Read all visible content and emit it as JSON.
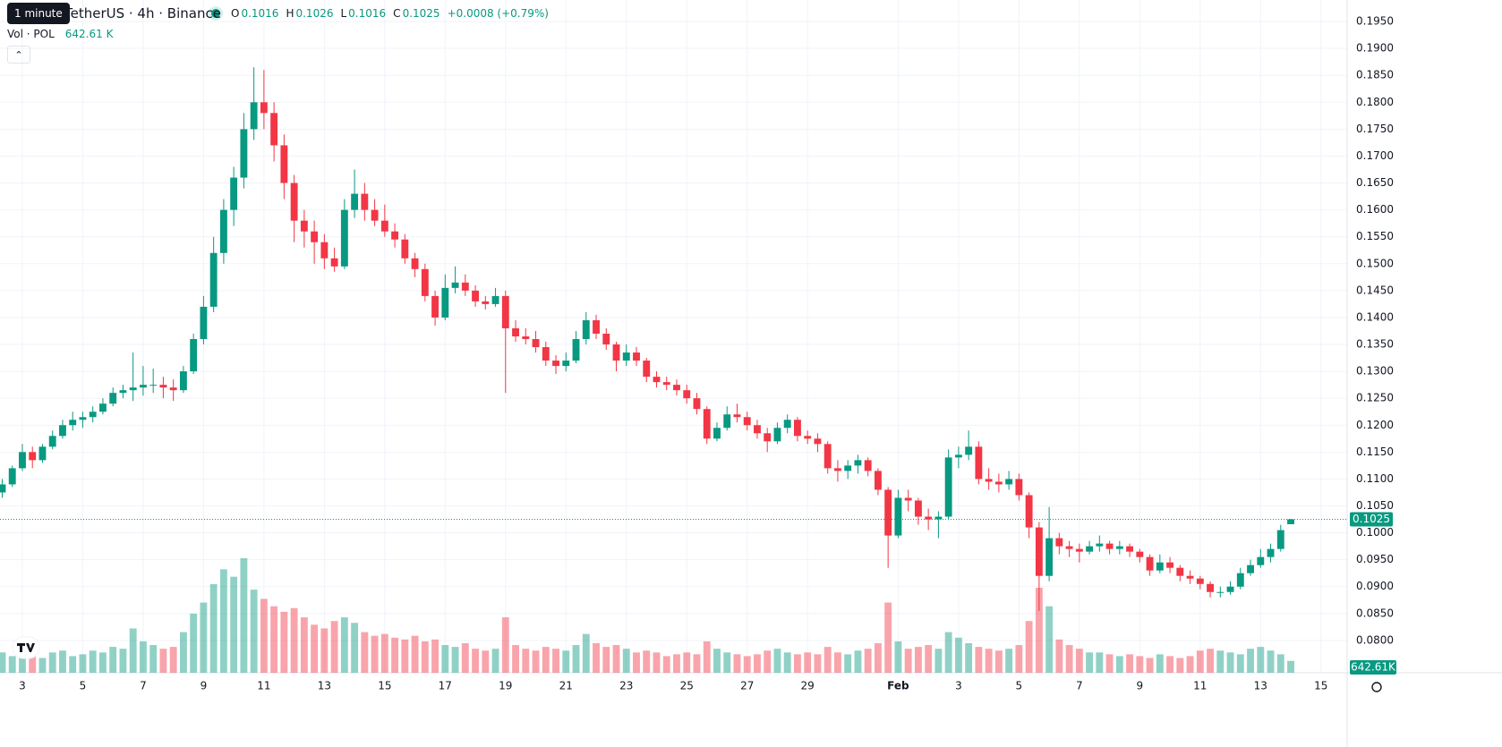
{
  "header": {
    "tooltip": "1 minute",
    "title": "TetherUS · 4h · Binance",
    "legend": {
      "open_label": "O",
      "high_label": "H",
      "low_label": "L",
      "close_label": "C",
      "change": "+0.0008 (+0.79%)"
    },
    "volume_title": "Vol · POL"
  },
  "chart_data": {
    "type": "candlestick",
    "up_color": "#089981",
    "down_color": "#f23645",
    "grid": true,
    "xlim": [
      -0.22,
      133.6
    ],
    "xticks": [
      {
        "value": 2,
        "label": "3"
      },
      {
        "value": 8,
        "label": "5"
      },
      {
        "value": 14,
        "label": "7"
      },
      {
        "value": 20,
        "label": "9"
      },
      {
        "value": 26,
        "label": "11"
      },
      {
        "value": 32,
        "label": "13"
      },
      {
        "value": 38,
        "label": "15"
      },
      {
        "value": 44,
        "label": "17"
      },
      {
        "value": 50,
        "label": "19"
      },
      {
        "value": 56,
        "label": "21"
      },
      {
        "value": 62,
        "label": "23"
      },
      {
        "value": 68,
        "label": "25"
      },
      {
        "value": 74,
        "label": "27"
      },
      {
        "value": 80,
        "label": "29"
      },
      {
        "value": 89,
        "label": "Feb"
      },
      {
        "value": 95,
        "label": "3"
      },
      {
        "value": 101,
        "label": "5"
      },
      {
        "value": 107,
        "label": "7"
      },
      {
        "value": 113,
        "label": "9"
      },
      {
        "value": 119,
        "label": "11"
      },
      {
        "value": 125,
        "label": "13"
      },
      {
        "value": 131,
        "label": "15"
      }
    ],
    "ylim": [
      0.074,
      0.199
    ],
    "yticks": [
      {
        "value": 0.08,
        "label": "0.0800"
      },
      {
        "value": 0.085,
        "label": "0.0850"
      },
      {
        "value": 0.09,
        "label": "0.0900"
      },
      {
        "value": 0.095,
        "label": "0.0950"
      },
      {
        "value": 0.1,
        "label": "0.1000"
      },
      {
        "value": 0.105,
        "label": "0.1050"
      },
      {
        "value": 0.11,
        "label": "0.1100"
      },
      {
        "value": 0.115,
        "label": "0.1150"
      },
      {
        "value": 0.12,
        "label": "0.1200"
      },
      {
        "value": 0.125,
        "label": "0.1250"
      },
      {
        "value": 0.13,
        "label": "0.1300"
      },
      {
        "value": 0.135,
        "label": "0.1350"
      },
      {
        "value": 0.14,
        "label": "0.1400"
      },
      {
        "value": 0.145,
        "label": "0.1450"
      },
      {
        "value": 0.15,
        "label": "0.1500"
      },
      {
        "value": 0.155,
        "label": "0.1550"
      },
      {
        "value": 0.16,
        "label": "0.1600"
      },
      {
        "value": 0.165,
        "label": "0.1650"
      },
      {
        "value": 0.17,
        "label": "0.1700"
      },
      {
        "value": 0.175,
        "label": "0.1750"
      },
      {
        "value": 0.18,
        "label": "0.1800"
      },
      {
        "value": 0.185,
        "label": "0.1850"
      },
      {
        "value": 0.19,
        "label": "0.1900"
      },
      {
        "value": 0.195,
        "label": "0.1950"
      }
    ],
    "candles": [
      [
        0.1075,
        0.11,
        0.1065,
        0.109
      ],
      [
        0.109,
        0.1125,
        0.1085,
        0.112
      ],
      [
        0.112,
        0.1165,
        0.1115,
        0.115
      ],
      [
        0.115,
        0.116,
        0.112,
        0.1135
      ],
      [
        0.1135,
        0.1165,
        0.113,
        0.116
      ],
      [
        0.116,
        0.119,
        0.1155,
        0.118
      ],
      [
        0.118,
        0.121,
        0.1175,
        0.12
      ],
      [
        0.12,
        0.1225,
        0.119,
        0.121
      ],
      [
        0.121,
        0.1225,
        0.1195,
        0.1215
      ],
      [
        0.1215,
        0.1235,
        0.1205,
        0.1225
      ],
      [
        0.1225,
        0.125,
        0.122,
        0.124
      ],
      [
        0.124,
        0.127,
        0.1235,
        0.126
      ],
      [
        0.126,
        0.1275,
        0.125,
        0.1265
      ],
      [
        0.1265,
        0.1335,
        0.1245,
        0.127
      ],
      [
        0.127,
        0.131,
        0.1255,
        0.1275
      ],
      [
        0.1275,
        0.1305,
        0.126,
        0.1275
      ],
      [
        0.1275,
        0.129,
        0.125,
        0.127
      ],
      [
        0.127,
        0.1285,
        0.1245,
        0.1265
      ],
      [
        0.1265,
        0.131,
        0.126,
        0.13
      ],
      [
        0.13,
        0.137,
        0.1295,
        0.136
      ],
      [
        0.136,
        0.144,
        0.135,
        0.142
      ],
      [
        0.142,
        0.155,
        0.141,
        0.152
      ],
      [
        0.152,
        0.162,
        0.15,
        0.16
      ],
      [
        0.16,
        0.168,
        0.157,
        0.166
      ],
      [
        0.166,
        0.178,
        0.164,
        0.175
      ],
      [
        0.175,
        0.1865,
        0.173,
        0.18
      ],
      [
        0.18,
        0.186,
        0.175,
        0.178
      ],
      [
        0.178,
        0.18,
        0.169,
        0.172
      ],
      [
        0.172,
        0.174,
        0.162,
        0.165
      ],
      [
        0.165,
        0.1665,
        0.154,
        0.158
      ],
      [
        0.158,
        0.16,
        0.153,
        0.156
      ],
      [
        0.156,
        0.158,
        0.15,
        0.154
      ],
      [
        0.154,
        0.1555,
        0.149,
        0.151
      ],
      [
        0.151,
        0.153,
        0.1485,
        0.1495
      ],
      [
        0.1495,
        0.162,
        0.149,
        0.16
      ],
      [
        0.16,
        0.1675,
        0.1585,
        0.163
      ],
      [
        0.163,
        0.165,
        0.158,
        0.16
      ],
      [
        0.16,
        0.162,
        0.157,
        0.158
      ],
      [
        0.158,
        0.161,
        0.155,
        0.156
      ],
      [
        0.156,
        0.1575,
        0.153,
        0.1545
      ],
      [
        0.1545,
        0.1555,
        0.15,
        0.151
      ],
      [
        0.151,
        0.152,
        0.1475,
        0.149
      ],
      [
        0.149,
        0.15,
        0.143,
        0.144
      ],
      [
        0.144,
        0.145,
        0.1385,
        0.14
      ],
      [
        0.14,
        0.148,
        0.1395,
        0.1455
      ],
      [
        0.1455,
        0.1495,
        0.1445,
        0.1465
      ],
      [
        0.1465,
        0.148,
        0.144,
        0.145
      ],
      [
        0.145,
        0.146,
        0.142,
        0.143
      ],
      [
        0.143,
        0.144,
        0.1415,
        0.1425
      ],
      [
        0.1425,
        0.1455,
        0.142,
        0.144
      ],
      [
        0.144,
        0.145,
        0.126,
        0.138
      ],
      [
        0.138,
        0.1395,
        0.1355,
        0.1365
      ],
      [
        0.1365,
        0.138,
        0.135,
        0.136
      ],
      [
        0.136,
        0.1375,
        0.1335,
        0.1345
      ],
      [
        0.1345,
        0.1355,
        0.131,
        0.132
      ],
      [
        0.132,
        0.133,
        0.1295,
        0.131
      ],
      [
        0.131,
        0.1335,
        0.13,
        0.132
      ],
      [
        0.132,
        0.1375,
        0.1315,
        0.136
      ],
      [
        0.136,
        0.141,
        0.135,
        0.1395
      ],
      [
        0.1395,
        0.1405,
        0.136,
        0.137
      ],
      [
        0.137,
        0.138,
        0.134,
        0.135
      ],
      [
        0.135,
        0.1355,
        0.13,
        0.132
      ],
      [
        0.132,
        0.135,
        0.131,
        0.1335
      ],
      [
        0.1335,
        0.1345,
        0.131,
        0.132
      ],
      [
        0.132,
        0.1325,
        0.128,
        0.129
      ],
      [
        0.129,
        0.13,
        0.127,
        0.128
      ],
      [
        0.128,
        0.129,
        0.1265,
        0.1275
      ],
      [
        0.1275,
        0.1285,
        0.1255,
        0.1265
      ],
      [
        0.1265,
        0.1275,
        0.124,
        0.125
      ],
      [
        0.125,
        0.126,
        0.122,
        0.123
      ],
      [
        0.123,
        0.1235,
        0.1165,
        0.1175
      ],
      [
        0.1175,
        0.1205,
        0.117,
        0.1195
      ],
      [
        0.1195,
        0.1235,
        0.119,
        0.122
      ],
      [
        0.122,
        0.124,
        0.1205,
        0.1215
      ],
      [
        0.1215,
        0.1225,
        0.119,
        0.12
      ],
      [
        0.12,
        0.121,
        0.1175,
        0.1185
      ],
      [
        0.1185,
        0.1195,
        0.115,
        0.117
      ],
      [
        0.117,
        0.1205,
        0.1165,
        0.1195
      ],
      [
        0.1195,
        0.122,
        0.1185,
        0.121
      ],
      [
        0.121,
        0.1215,
        0.117,
        0.118
      ],
      [
        0.118,
        0.119,
        0.1165,
        0.1175
      ],
      [
        0.1175,
        0.1185,
        0.115,
        0.1165
      ],
      [
        0.1165,
        0.117,
        0.111,
        0.112
      ],
      [
        0.112,
        0.1135,
        0.1095,
        0.1115
      ],
      [
        0.1115,
        0.1135,
        0.11,
        0.1125
      ],
      [
        0.1125,
        0.1145,
        0.111,
        0.1135
      ],
      [
        0.1135,
        0.114,
        0.1105,
        0.1115
      ],
      [
        0.1115,
        0.112,
        0.107,
        0.108
      ],
      [
        0.108,
        0.1085,
        0.0935,
        0.0995
      ],
      [
        0.0995,
        0.108,
        0.099,
        0.1065
      ],
      [
        0.1065,
        0.108,
        0.104,
        0.106
      ],
      [
        0.106,
        0.1065,
        0.1015,
        0.103
      ],
      [
        0.103,
        0.1045,
        0.1005,
        0.1025
      ],
      [
        0.1025,
        0.104,
        0.099,
        0.103
      ],
      [
        0.103,
        0.1155,
        0.1025,
        0.114
      ],
      [
        0.114,
        0.116,
        0.112,
        0.1145
      ],
      [
        0.1145,
        0.119,
        0.1135,
        0.116
      ],
      [
        0.116,
        0.117,
        0.109,
        0.11
      ],
      [
        0.11,
        0.112,
        0.108,
        0.1095
      ],
      [
        0.1095,
        0.111,
        0.1075,
        0.109
      ],
      [
        0.109,
        0.1115,
        0.108,
        0.11
      ],
      [
        0.11,
        0.111,
        0.106,
        0.107
      ],
      [
        0.107,
        0.1075,
        0.099,
        0.101
      ],
      [
        0.101,
        0.102,
        0.0855,
        0.092
      ],
      [
        0.092,
        0.1048,
        0.091,
        0.099
      ],
      [
        0.099,
        0.1,
        0.096,
        0.0975
      ],
      [
        0.0975,
        0.0985,
        0.0955,
        0.097
      ],
      [
        0.097,
        0.098,
        0.0945,
        0.0965
      ],
      [
        0.0965,
        0.0985,
        0.096,
        0.0975
      ],
      [
        0.0975,
        0.0995,
        0.0965,
        0.098
      ],
      [
        0.098,
        0.0985,
        0.096,
        0.097
      ],
      [
        0.097,
        0.0985,
        0.096,
        0.0975
      ],
      [
        0.0975,
        0.098,
        0.0955,
        0.0965
      ],
      [
        0.0965,
        0.097,
        0.0945,
        0.0955
      ],
      [
        0.0955,
        0.096,
        0.092,
        0.093
      ],
      [
        0.093,
        0.096,
        0.0925,
        0.0945
      ],
      [
        0.0945,
        0.0955,
        0.0925,
        0.0935
      ],
      [
        0.0935,
        0.094,
        0.091,
        0.092
      ],
      [
        0.092,
        0.093,
        0.0905,
        0.0915
      ],
      [
        0.0915,
        0.092,
        0.0895,
        0.0905
      ],
      [
        0.0905,
        0.091,
        0.088,
        0.089
      ],
      [
        0.089,
        0.09,
        0.088,
        0.089
      ],
      [
        0.089,
        0.091,
        0.0885,
        0.09
      ],
      [
        0.09,
        0.0935,
        0.0895,
        0.0925
      ],
      [
        0.0925,
        0.095,
        0.092,
        0.094
      ],
      [
        0.094,
        0.097,
        0.0935,
        0.0955
      ],
      [
        0.0955,
        0.098,
        0.0945,
        0.097
      ],
      [
        0.097,
        0.1015,
        0.0965,
        0.1005
      ],
      [
        0.1016,
        0.1026,
        0.1016,
        0.1025
      ]
    ],
    "volumes": [
      1100,
      900,
      1300,
      1000,
      800,
      1100,
      1200,
      900,
      1000,
      1200,
      1100,
      1400,
      1300,
      2400,
      1700,
      1500,
      1300,
      1400,
      2200,
      3200,
      3800,
      4800,
      5600,
      5200,
      6200,
      4500,
      4000,
      3600,
      3300,
      3500,
      3000,
      2600,
      2400,
      2800,
      3000,
      2700,
      2200,
      2000,
      2100,
      1900,
      1800,
      2000,
      1700,
      1800,
      1500,
      1400,
      1600,
      1300,
      1200,
      1300,
      3000,
      1500,
      1300,
      1200,
      1400,
      1300,
      1200,
      1500,
      2100,
      1600,
      1400,
      1500,
      1300,
      1100,
      1200,
      1100,
      900,
      1000,
      1100,
      1000,
      1700,
      1300,
      1100,
      1000,
      900,
      1000,
      1200,
      1300,
      1100,
      1000,
      1100,
      1000,
      1400,
      1100,
      1000,
      1200,
      1300,
      1600,
      3800,
      1700,
      1300,
      1400,
      1500,
      1300,
      2200,
      1900,
      1600,
      1400,
      1300,
      1200,
      1300,
      1500,
      2800,
      4600,
      3600,
      1800,
      1500,
      1300,
      1100,
      1100,
      1000,
      900,
      1000,
      900,
      800,
      1000,
      900,
      800,
      900,
      1200,
      1300,
      1200,
      1100,
      1000,
      1300,
      1400,
      1200,
      1000,
      642.61
    ],
    "volume_label": "642.61 K",
    "volume_tag": "642.61K"
  }
}
